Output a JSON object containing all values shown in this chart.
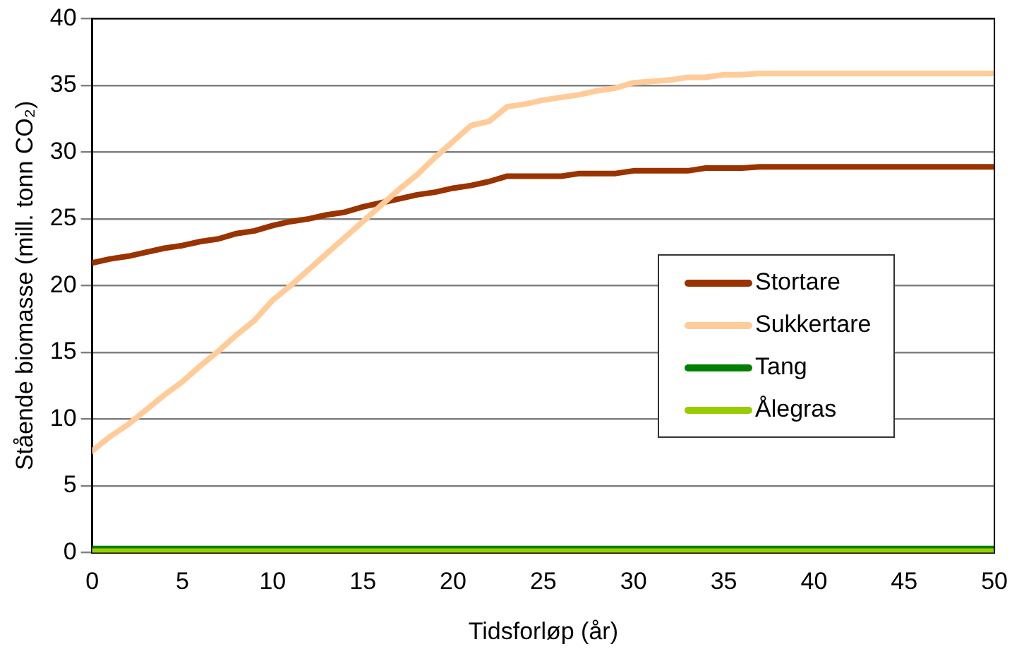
{
  "chart_data": {
    "type": "line",
    "xlabel": "Tidsforløp (år)",
    "ylabel": "Stående biomasse (mill. tonn CO₂)",
    "x": [
      0,
      1,
      2,
      3,
      4,
      5,
      6,
      7,
      8,
      9,
      10,
      11,
      12,
      13,
      14,
      15,
      16,
      17,
      18,
      19,
      20,
      21,
      22,
      23,
      24,
      25,
      26,
      27,
      28,
      29,
      30,
      31,
      32,
      33,
      34,
      35,
      36,
      37,
      38,
      39,
      40,
      41,
      42,
      43,
      44,
      45,
      46,
      47,
      48,
      49,
      50
    ],
    "xlim": [
      0,
      50
    ],
    "xticks": [
      0,
      5,
      10,
      15,
      20,
      25,
      30,
      35,
      40,
      45,
      50
    ],
    "ylim": [
      0,
      40
    ],
    "yticks": [
      0,
      5,
      10,
      15,
      20,
      25,
      30,
      35,
      40
    ],
    "grid": "y",
    "legend": "right",
    "marker": "none",
    "line_style": "solid",
    "series": [
      {
        "name": "Stortare",
        "color": "#993300",
        "values": [
          21.7,
          22.0,
          22.2,
          22.5,
          22.8,
          23.0,
          23.3,
          23.5,
          23.9,
          24.1,
          24.5,
          24.8,
          25.0,
          25.3,
          25.5,
          25.9,
          26.2,
          26.5,
          26.8,
          27.0,
          27.3,
          27.5,
          27.8,
          28.2,
          28.2,
          28.2,
          28.2,
          28.4,
          28.4,
          28.4,
          28.6,
          28.6,
          28.6,
          28.6,
          28.8,
          28.8,
          28.8,
          28.9,
          28.9,
          28.9,
          28.9,
          28.9,
          28.9,
          28.9,
          28.9,
          28.9,
          28.9,
          28.9,
          28.9,
          28.9,
          28.9
        ]
      },
      {
        "name": "Sukkertare",
        "color": "#ffcc99",
        "values": [
          7.6,
          8.7,
          9.6,
          10.7,
          11.8,
          12.8,
          14.0,
          15.1,
          16.3,
          17.4,
          18.9,
          20.0,
          21.2,
          22.4,
          23.6,
          24.8,
          26.0,
          27.2,
          28.3,
          29.6,
          30.8,
          32.0,
          32.3,
          33.4,
          33.6,
          33.9,
          34.1,
          34.3,
          34.6,
          34.8,
          35.2,
          35.3,
          35.4,
          35.6,
          35.6,
          35.8,
          35.8,
          35.9,
          35.9,
          35.9,
          35.9,
          35.9,
          35.9,
          35.9,
          35.9,
          35.9,
          35.9,
          35.9,
          35.9,
          35.9,
          35.9
        ]
      },
      {
        "name": "Tang",
        "color": "#008000",
        "values": [
          0.3,
          0.3,
          0.3,
          0.3,
          0.3,
          0.3,
          0.3,
          0.3,
          0.3,
          0.3,
          0.3,
          0.3,
          0.3,
          0.3,
          0.3,
          0.3,
          0.3,
          0.3,
          0.3,
          0.3,
          0.3,
          0.3,
          0.3,
          0.3,
          0.3,
          0.3,
          0.3,
          0.3,
          0.3,
          0.3,
          0.3,
          0.3,
          0.3,
          0.3,
          0.3,
          0.3,
          0.3,
          0.3,
          0.3,
          0.3,
          0.3,
          0.3,
          0.3,
          0.3,
          0.3,
          0.3,
          0.3,
          0.3,
          0.3,
          0.3,
          0.3
        ]
      },
      {
        "name": "Ålegras",
        "color": "#99cc00",
        "values": [
          0.1,
          0.1,
          0.1,
          0.1,
          0.1,
          0.1,
          0.1,
          0.1,
          0.1,
          0.1,
          0.1,
          0.1,
          0.1,
          0.1,
          0.1,
          0.1,
          0.1,
          0.1,
          0.1,
          0.1,
          0.1,
          0.1,
          0.1,
          0.1,
          0.1,
          0.1,
          0.1,
          0.1,
          0.1,
          0.1,
          0.1,
          0.1,
          0.1,
          0.1,
          0.1,
          0.1,
          0.1,
          0.1,
          0.1,
          0.1,
          0.1,
          0.1,
          0.1,
          0.1,
          0.1,
          0.1,
          0.1,
          0.1,
          0.1,
          0.1,
          0.1
        ]
      }
    ]
  }
}
